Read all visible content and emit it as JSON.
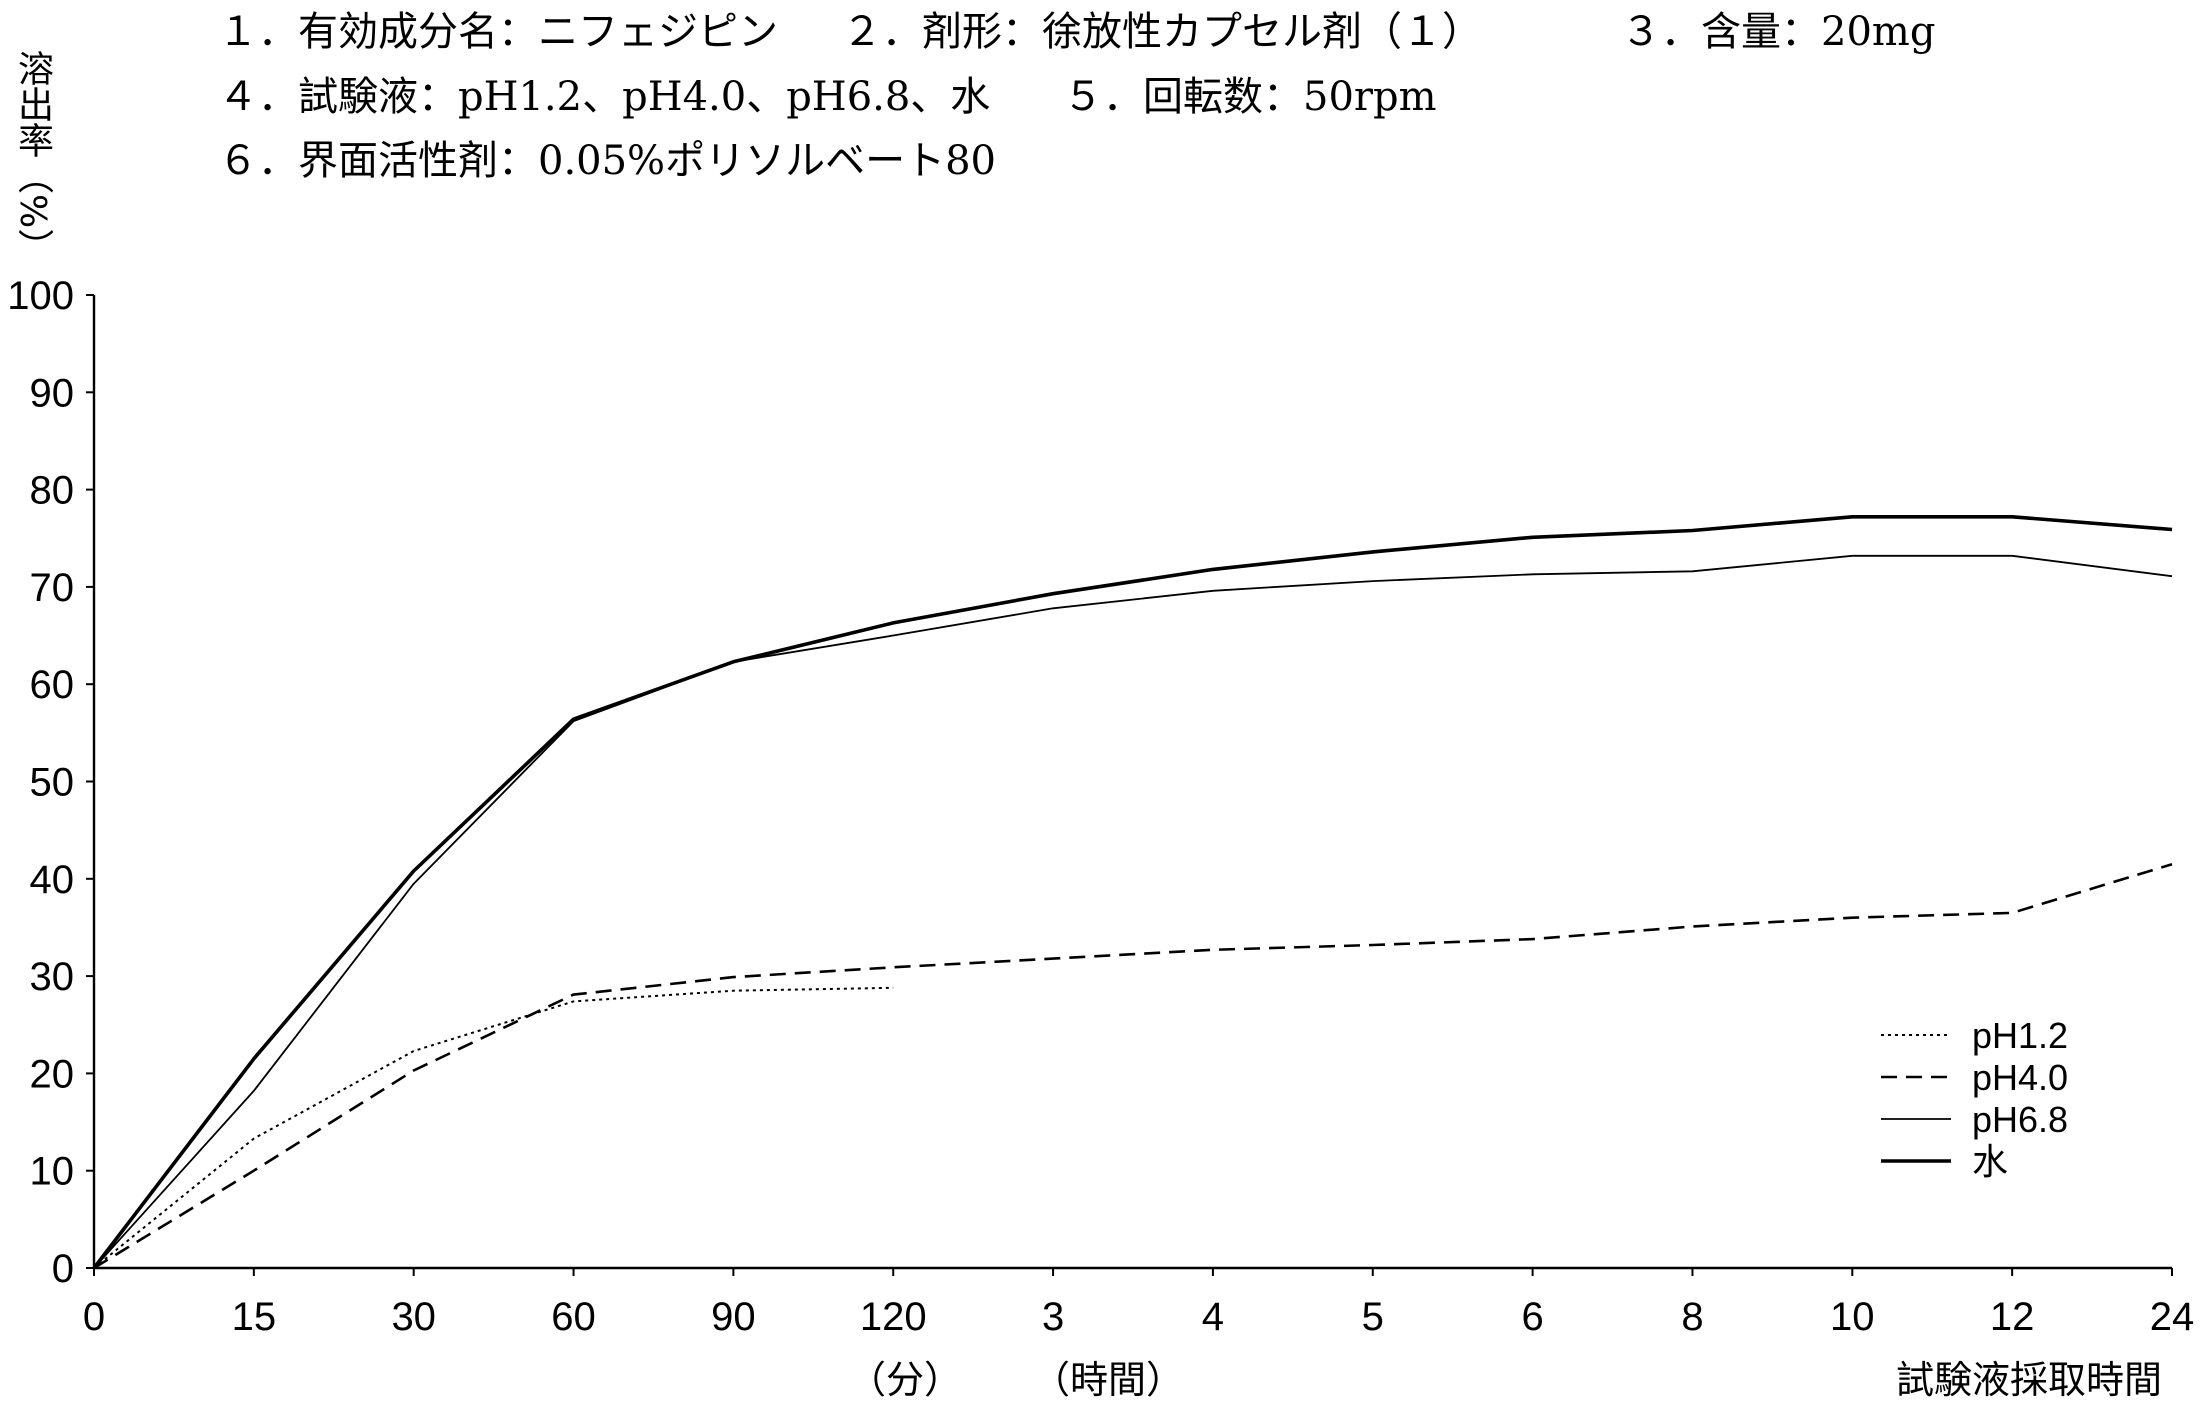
{
  "header": {
    "line1": [
      "１．有効成分名：ニフェジピン",
      "２．剤形：徐放性カプセル剤（１）",
      "３．含量：20mg"
    ],
    "line2": [
      "４．試験液：pH1.2、pH4.0、pH6.8、水",
      "５．回転数：50rpm"
    ],
    "line3": [
      "６．界面活性剤：0.05%ポリソルベート80"
    ]
  },
  "chart_data": {
    "type": "line",
    "ylabel": "溶出率（%）",
    "xlabel": "試験液採取時間",
    "x_unit_labels": {
      "minutes": "（分）",
      "hours": "（時間）"
    },
    "categories": [
      "0",
      "15",
      "30",
      "60",
      "90",
      "120",
      "3",
      "4",
      "5",
      "6",
      "8",
      "10",
      "12",
      "24"
    ],
    "ylim": [
      0,
      100
    ],
    "yticks": [
      "0",
      "10",
      "20",
      "30",
      "40",
      "50",
      "60",
      "70",
      "80",
      "90",
      "100"
    ],
    "grid": false,
    "legend": "lower-right",
    "series": [
      {
        "name": "pH1.2",
        "style": "dotted",
        "color": "#000000",
        "values": [
          0,
          13.3,
          22.3,
          27.4,
          28.5,
          28.8,
          null,
          null,
          null,
          null,
          null,
          null,
          null,
          null
        ]
      },
      {
        "name": "pH4.0",
        "style": "dashed",
        "color": "#000000",
        "values": [
          0,
          10.0,
          20.3,
          28.1,
          29.9,
          30.9,
          31.8,
          32.7,
          33.2,
          33.8,
          35.1,
          36.0,
          36.5,
          41.5
        ]
      },
      {
        "name": "pH6.8",
        "style": "thin",
        "color": "#000000",
        "values": [
          0,
          18.2,
          39.5,
          56.2,
          62.3,
          65.0,
          67.8,
          69.6,
          70.6,
          71.3,
          71.6,
          73.2,
          73.2,
          71.1
        ]
      },
      {
        "name": "水",
        "style": "thick",
        "color": "#000000",
        "values": [
          0,
          21.5,
          40.8,
          56.4,
          62.3,
          66.3,
          69.3,
          71.8,
          73.6,
          75.1,
          75.8,
          77.2,
          77.2,
          75.9
        ]
      }
    ]
  }
}
